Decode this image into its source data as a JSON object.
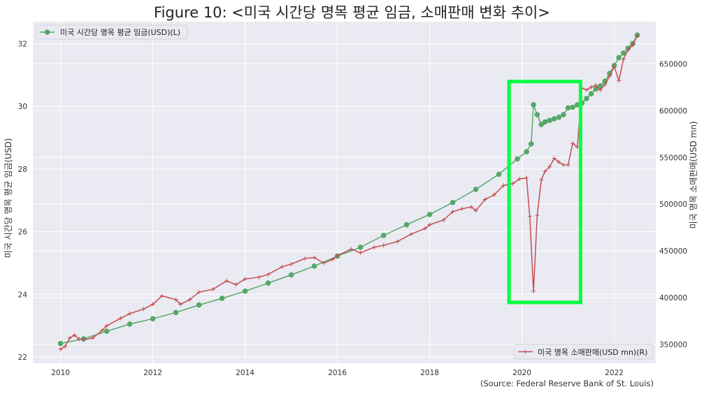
{
  "title": "Figure 10: <미국 시간당 명목 평균 임금, 소매판매 변화 추이>",
  "source": "(Source: Federal Reserve Bank of St. Louis)",
  "colors": {
    "background": "#eaeaf2",
    "grid": "#ffffff",
    "wage": "#55a868",
    "sales": "#c44e52",
    "highlight": "#00ff40"
  },
  "chart_data": {
    "type": "line",
    "x_axis": {
      "ticks": [
        2010,
        2012,
        2014,
        2016,
        2018,
        2020,
        2022
      ],
      "range": [
        2009.4,
        2022.9
      ]
    },
    "y_left": {
      "label": "미국 시간당 명목 평균 임금(USD)",
      "ticks": [
        22,
        24,
        26,
        28,
        30,
        32
      ],
      "range": [
        21.8,
        32.7
      ]
    },
    "y_right": {
      "label": "미국 명목 소매판매(USD mn)",
      "ticks": [
        350000,
        400000,
        450000,
        500000,
        550000,
        600000,
        650000
      ],
      "range": [
        330000,
        695000
      ]
    },
    "legend_left": {
      "label": "미국 시간당 명목 평균 임금(USD)(L)",
      "position": "upper-left"
    },
    "legend_right": {
      "label": "미국 명목 소매판매(USD mn)(R)",
      "position": "lower-right"
    },
    "series": [
      {
        "name": "미국 시간당 명목 평균 임금(USD)(L)",
        "axis": "left",
        "marker": "circle",
        "points": [
          [
            2010.0,
            22.43
          ],
          [
            2010.5,
            22.58
          ],
          [
            2011.0,
            22.82
          ],
          [
            2011.5,
            23.05
          ],
          [
            2012.0,
            23.22
          ],
          [
            2012.5,
            23.42
          ],
          [
            2013.0,
            23.66
          ],
          [
            2013.5,
            23.87
          ],
          [
            2014.0,
            24.1
          ],
          [
            2014.5,
            24.36
          ],
          [
            2015.0,
            24.62
          ],
          [
            2015.5,
            24.9
          ],
          [
            2016.0,
            25.22
          ],
          [
            2016.5,
            25.5
          ],
          [
            2017.0,
            25.88
          ],
          [
            2017.5,
            26.22
          ],
          [
            2018.0,
            26.55
          ],
          [
            2018.5,
            26.93
          ],
          [
            2019.0,
            27.35
          ],
          [
            2019.5,
            27.83
          ],
          [
            2019.9,
            28.32
          ],
          [
            2020.1,
            28.55
          ],
          [
            2020.2,
            28.8
          ],
          [
            2020.25,
            30.05
          ],
          [
            2020.33,
            29.73
          ],
          [
            2020.42,
            29.42
          ],
          [
            2020.5,
            29.5
          ],
          [
            2020.6,
            29.55
          ],
          [
            2020.7,
            29.6
          ],
          [
            2020.8,
            29.65
          ],
          [
            2020.9,
            29.73
          ],
          [
            2021.0,
            29.95
          ],
          [
            2021.1,
            29.97
          ],
          [
            2021.2,
            30.05
          ],
          [
            2021.3,
            30.1
          ],
          [
            2021.4,
            30.25
          ],
          [
            2021.5,
            30.4
          ],
          [
            2021.6,
            30.55
          ],
          [
            2021.7,
            30.65
          ],
          [
            2021.8,
            30.8
          ],
          [
            2021.9,
            31.05
          ],
          [
            2022.0,
            31.3
          ],
          [
            2022.1,
            31.55
          ],
          [
            2022.2,
            31.7
          ],
          [
            2022.3,
            31.85
          ],
          [
            2022.4,
            32.0
          ],
          [
            2022.5,
            32.27
          ]
        ]
      },
      {
        "name": "미국 명목 소매판매(USD mn)(R)",
        "axis": "right",
        "marker": "plus",
        "points": [
          [
            2010.0,
            345000
          ],
          [
            2010.1,
            348000
          ],
          [
            2010.2,
            357000
          ],
          [
            2010.3,
            360000
          ],
          [
            2010.4,
            356000
          ],
          [
            2010.5,
            355000
          ],
          [
            2010.7,
            357000
          ],
          [
            2010.9,
            365000
          ],
          [
            2011.0,
            370000
          ],
          [
            2011.3,
            378000
          ],
          [
            2011.5,
            383000
          ],
          [
            2011.8,
            388000
          ],
          [
            2012.0,
            393000
          ],
          [
            2012.2,
            402000
          ],
          [
            2012.5,
            398000
          ],
          [
            2012.6,
            393000
          ],
          [
            2012.8,
            398000
          ],
          [
            2013.0,
            406000
          ],
          [
            2013.3,
            409000
          ],
          [
            2013.6,
            418000
          ],
          [
            2013.8,
            414000
          ],
          [
            2014.0,
            420000
          ],
          [
            2014.3,
            422000
          ],
          [
            2014.5,
            425000
          ],
          [
            2014.8,
            433000
          ],
          [
            2015.0,
            436000
          ],
          [
            2015.3,
            442000
          ],
          [
            2015.5,
            443000
          ],
          [
            2015.7,
            437000
          ],
          [
            2015.9,
            441000
          ],
          [
            2016.0,
            445000
          ],
          [
            2016.3,
            452000
          ],
          [
            2016.5,
            448000
          ],
          [
            2016.8,
            454000
          ],
          [
            2017.0,
            456000
          ],
          [
            2017.3,
            460000
          ],
          [
            2017.6,
            468000
          ],
          [
            2017.9,
            474000
          ],
          [
            2018.0,
            478000
          ],
          [
            2018.3,
            483000
          ],
          [
            2018.5,
            492000
          ],
          [
            2018.7,
            495000
          ],
          [
            2018.9,
            497000
          ],
          [
            2019.0,
            493000
          ],
          [
            2019.2,
            505000
          ],
          [
            2019.4,
            510000
          ],
          [
            2019.6,
            520000
          ],
          [
            2019.8,
            522000
          ],
          [
            2019.95,
            527000
          ],
          [
            2020.1,
            528000
          ],
          [
            2020.17,
            487000
          ],
          [
            2020.25,
            407000
          ],
          [
            2020.33,
            488000
          ],
          [
            2020.42,
            526000
          ],
          [
            2020.5,
            535000
          ],
          [
            2020.6,
            540000
          ],
          [
            2020.7,
            549000
          ],
          [
            2020.8,
            545000
          ],
          [
            2020.9,
            542000
          ],
          [
            2021.0,
            542000
          ],
          [
            2021.1,
            565000
          ],
          [
            2021.2,
            561000
          ],
          [
            2021.3,
            624000
          ],
          [
            2021.4,
            622000
          ],
          [
            2021.5,
            625000
          ],
          [
            2021.6,
            627000
          ],
          [
            2021.7,
            622000
          ],
          [
            2021.8,
            628000
          ],
          [
            2021.9,
            637000
          ],
          [
            2022.0,
            647000
          ],
          [
            2022.1,
            632000
          ],
          [
            2022.2,
            655000
          ],
          [
            2022.3,
            665000
          ],
          [
            2022.4,
            670000
          ],
          [
            2022.5,
            680000
          ]
        ]
      }
    ]
  }
}
